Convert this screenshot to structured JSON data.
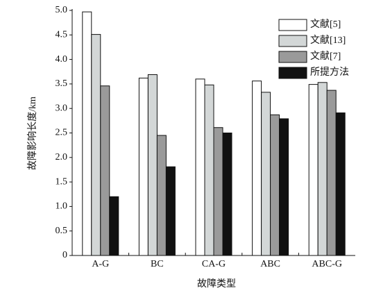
{
  "chart_data": {
    "type": "bar",
    "x_label": "故障类型",
    "y_label": "故障影响长度/km",
    "categories": [
      "A-G",
      "BC",
      "CA-G",
      "ABC",
      "ABC-G"
    ],
    "series": [
      {
        "name": "文献[5]",
        "color": "#ffffff",
        "values": [
          4.97,
          3.62,
          3.6,
          3.56,
          3.49
        ]
      },
      {
        "name": "文献[13]",
        "color": "#d3d7d7",
        "values": [
          4.51,
          3.69,
          3.48,
          3.33,
          3.53
        ]
      },
      {
        "name": "文献[7]",
        "color": "#9a9a9a",
        "values": [
          3.46,
          2.45,
          2.61,
          2.87,
          3.37
        ]
      },
      {
        "name": "所提方法",
        "color": "#111111",
        "values": [
          1.2,
          1.81,
          2.5,
          2.79,
          2.91
        ]
      }
    ],
    "ylim": [
      0,
      5
    ],
    "yticks": [
      0,
      0.5,
      {
        "value": 1,
        "label": "1.0"
      },
      1.5,
      {
        "value": 2,
        "label": "2.0"
      },
      2.5,
      {
        "value": 3,
        "label": "3.0"
      },
      3.5,
      {
        "value": 4,
        "label": "4.0"
      },
      4.5,
      {
        "value": 5,
        "label": "5.0"
      }
    ],
    "legend": "top-right"
  }
}
